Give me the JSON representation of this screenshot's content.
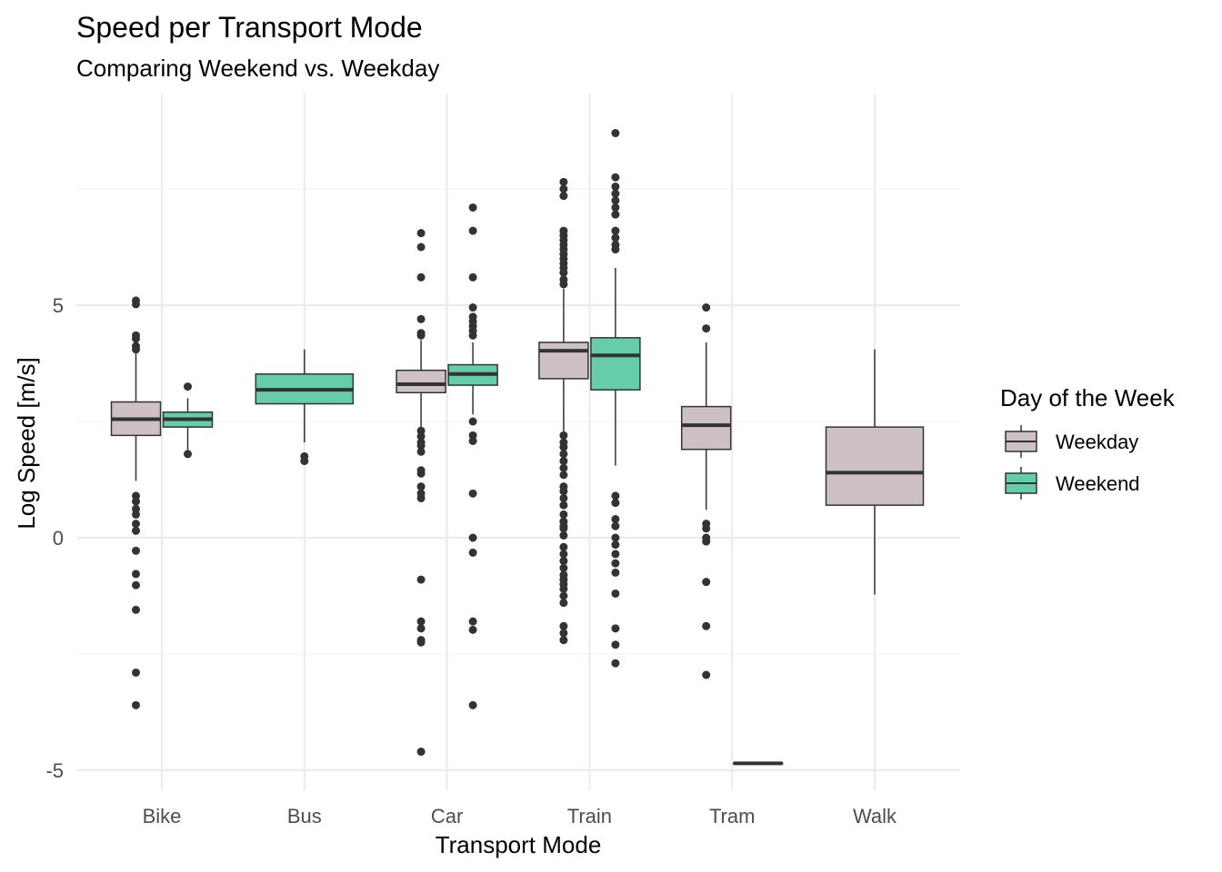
{
  "chart_data": {
    "type": "boxplot",
    "title": "Speed per Transport Mode",
    "subtitle": "Comparing Weekend vs. Weekday",
    "xlabel": "Transport Mode",
    "ylabel": "Log Speed [m/s]",
    "ylim": [
      -5.2,
      9.6
    ],
    "y_ticks": [
      -5,
      0,
      5
    ],
    "grid": true,
    "categories": [
      "Bike",
      "Bus",
      "Car",
      "Train",
      "Tram",
      "Walk"
    ],
    "legend": {
      "title": "Day of the Week",
      "placement": "right",
      "entries": [
        {
          "name": "Weekday",
          "color": "#CEC1C5"
        },
        {
          "name": "Weekend",
          "color": "#66CDAA"
        }
      ]
    },
    "series": [
      {
        "name": "Weekday",
        "color": "#CEC1C5",
        "boxes": [
          {
            "category": "Bike",
            "whisker_low": 1.22,
            "q1": 2.2,
            "median": 2.55,
            "q3": 2.92,
            "whisker_high": 4.0,
            "outliers": [
              5.1,
              5.02,
              4.35,
              4.28,
              4.12,
              4.05,
              0.9,
              0.78,
              0.62,
              0.5,
              0.3,
              0.15,
              -0.28,
              -0.78,
              -1.02,
              -1.55,
              -2.9,
              -3.6
            ]
          },
          {
            "category": "Car",
            "whisker_low": 2.35,
            "q1": 3.12,
            "median": 3.3,
            "q3": 3.6,
            "whisker_high": 4.25,
            "outliers": [
              6.55,
              6.25,
              5.6,
              4.7,
              4.4,
              4.35,
              2.3,
              2.18,
              2.05,
              1.98,
              1.85,
              1.45,
              1.38,
              1.1,
              0.95,
              0.85,
              -0.9,
              -1.8,
              -1.95,
              -2.2,
              -2.25,
              -4.6
            ]
          },
          {
            "category": "Train",
            "whisker_low": 2.25,
            "q1": 3.42,
            "median": 4.02,
            "q3": 4.2,
            "whisker_high": 5.35,
            "outliers": [
              7.65,
              7.5,
              7.35,
              6.6,
              6.5,
              6.4,
              6.3,
              6.2,
              6.1,
              6.0,
              5.9,
              5.8,
              5.7,
              5.55,
              5.45,
              2.2,
              2.05,
              1.95,
              1.8,
              1.65,
              1.5,
              1.35,
              1.1,
              1.0,
              0.85,
              0.7,
              0.5,
              0.35,
              0.25,
              0.2,
              0.05,
              -0.2,
              -0.35,
              -0.5,
              -0.65,
              -0.8,
              -0.9,
              -1.0,
              -1.1,
              -1.25,
              -1.4,
              -1.9,
              -2.05,
              -2.2
            ]
          },
          {
            "category": "Tram",
            "whisker_low": 0.6,
            "q1": 1.9,
            "median": 2.42,
            "q3": 2.82,
            "whisker_high": 4.2,
            "outliers": [
              4.95,
              4.5,
              0.3,
              0.2,
              0.0,
              -0.08,
              -0.95,
              -1.9,
              -2.95
            ]
          },
          {
            "category": "Tram_weekend_placeholder",
            "skip": true
          },
          {
            "category": "Walk",
            "whisker_low": -1.22,
            "q1": 0.7,
            "median": 1.4,
            "q3": 2.38,
            "whisker_high": 4.05,
            "outliers": []
          }
        ]
      },
      {
        "name": "Weekend",
        "color": "#66CDAA",
        "boxes": [
          {
            "category": "Bike",
            "whisker_low": 1.85,
            "q1": 2.38,
            "median": 2.55,
            "q3": 2.7,
            "whisker_high": 3.0,
            "outliers": [
              3.25,
              1.8
            ]
          },
          {
            "category": "Bus",
            "whisker_low": 2.05,
            "q1": 2.88,
            "median": 3.18,
            "q3": 3.52,
            "whisker_high": 4.05,
            "outliers": [
              1.75,
              1.65
            ]
          },
          {
            "category": "Car",
            "whisker_low": 2.65,
            "q1": 3.28,
            "median": 3.52,
            "q3": 3.72,
            "whisker_high": 4.2,
            "outliers": [
              7.1,
              6.6,
              5.6,
              4.95,
              4.75,
              4.65,
              4.55,
              4.45,
              4.35,
              2.5,
              2.2,
              2.08,
              0.95,
              0.0,
              -0.32,
              -1.8,
              -1.98,
              -3.6
            ]
          },
          {
            "category": "Train",
            "whisker_low": 1.55,
            "q1": 3.18,
            "median": 3.92,
            "q3": 4.3,
            "whisker_high": 5.8,
            "outliers": [
              8.7,
              7.75,
              7.55,
              7.4,
              7.25,
              7.1,
              6.95,
              6.6,
              6.45,
              6.3,
              6.2,
              0.9,
              0.75,
              0.4,
              0.25,
              0.0,
              -0.15,
              -0.35,
              -0.55,
              -0.75,
              -1.2,
              -1.95,
              -2.3,
              -2.7
            ]
          },
          {
            "category": "Tram",
            "whisker_low": -4.85,
            "q1": -4.85,
            "median": -4.85,
            "q3": -4.85,
            "whisker_high": -4.85,
            "outliers": []
          }
        ]
      }
    ]
  }
}
